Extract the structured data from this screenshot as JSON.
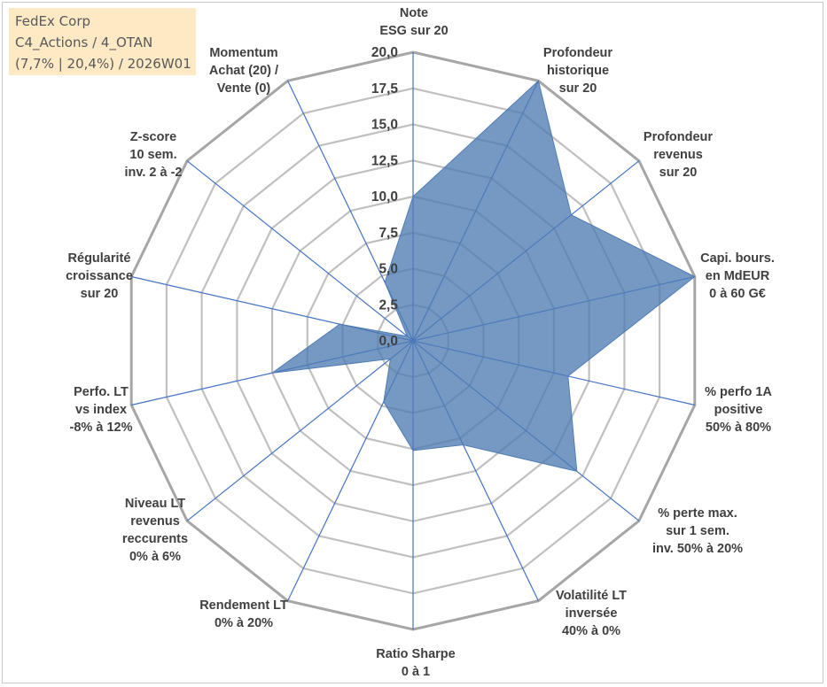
{
  "info_box": {
    "company": "FedEx Corp",
    "portfolio": "C4_Actions / 4_OTAN",
    "meta": "(7,7% | 20,4%) / 2026W01"
  },
  "colors": {
    "fill": "#4f7cb4",
    "fill_opacity": 0.78,
    "spoke": "#4472c4",
    "grid": "#c0c0c0",
    "grid_outer": "#a6a6a6",
    "text": "#404040",
    "info_bg": "#fde9c4"
  },
  "chart_data": {
    "type": "radar",
    "title": "",
    "range": [
      0,
      20
    ],
    "grid": true,
    "ticks": [
      "0,0",
      "2,5",
      "5,0",
      "7,5",
      "10,0",
      "12,5",
      "15,0",
      "17,5",
      "20,0"
    ],
    "axes": [
      {
        "label": [
          "Note",
          "ESG sur 20"
        ],
        "value": 10.0
      },
      {
        "label": [
          "Profondeur",
          "historique",
          "sur 20"
        ],
        "value": 20.0
      },
      {
        "label": [
          "Profondeur",
          "revenus",
          "sur 20"
        ],
        "value": 14.0
      },
      {
        "label": [
          "Capi. bours.",
          "en MdEUR",
          "0 à 60 G€"
        ],
        "value": 20.0
      },
      {
        "label": [
          "% perfo 1A",
          "positive",
          "50% à 80%"
        ],
        "value": 11.0
      },
      {
        "label": [
          "% perte max.",
          "sur 1 sem.",
          "inv. 50% à 20%"
        ],
        "value": 14.5
      },
      {
        "label": [
          "Volatilité LT",
          "inversée",
          "40% à 0%"
        ],
        "value": 8.0
      },
      {
        "label": [
          "Ratio Sharpe",
          "0 à 1"
        ],
        "value": 7.6
      },
      {
        "label": [
          "Rendement LT",
          "0% à 20%"
        ],
        "value": 4.7
      },
      {
        "label": [
          "Niveau LT",
          "revenus",
          "reccurents",
          "0% à 6%"
        ],
        "value": 2.0
      },
      {
        "label": [
          "Perfo. LT",
          "vs index",
          "-8% à 12%"
        ],
        "value": 10.0
      },
      {
        "label": [
          "Régularité",
          "croissance",
          "sur 20"
        ],
        "value": 5.2
      },
      {
        "label": [
          "Z-score",
          "10 sem.",
          "inv. 2 à -2"
        ],
        "value": 0.5
      },
      {
        "label": [
          "Momentum",
          "Achat (20) /",
          "Vente (0)"
        ],
        "value": 4.5
      }
    ]
  }
}
